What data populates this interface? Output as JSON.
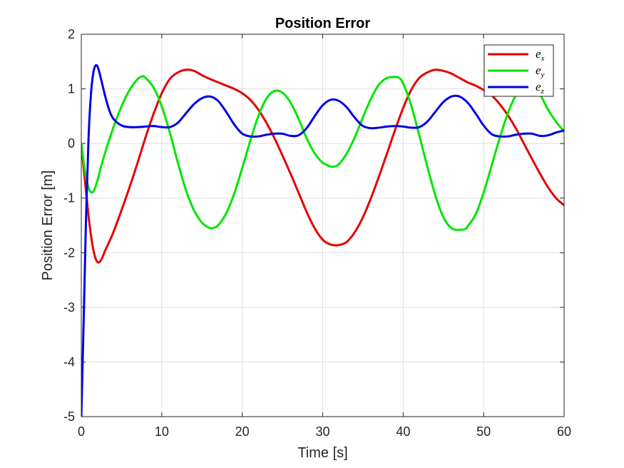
{
  "chart_data": {
    "type": "line",
    "title": "Position Error",
    "xlabel": "Time [s]",
    "ylabel": "Position Error [m]",
    "xlim": [
      0,
      60
    ],
    "ylim": [
      -5,
      2
    ],
    "xticks": [
      "0",
      "10",
      "20",
      "30",
      "40",
      "50",
      "60"
    ],
    "yticks": [
      "-5",
      "-4",
      "-3",
      "-2",
      "-1",
      "0",
      "1",
      "2"
    ],
    "grid": true,
    "legend_position": "top-right",
    "series": [
      {
        "name": "e_x",
        "legend_base": "e",
        "legend_sub": "x",
        "color": "#e60000",
        "x": [
          0,
          0.5,
          1,
          1.5,
          2,
          2.5,
          3,
          4,
          5,
          6,
          7,
          8,
          9,
          10,
          11,
          12,
          13,
          14,
          15,
          16,
          17,
          18,
          19,
          20,
          21,
          22,
          23,
          24,
          25,
          26,
          27,
          28,
          29,
          30,
          31,
          32,
          33,
          34,
          35,
          36,
          37,
          38,
          39,
          40,
          41,
          42,
          43,
          44,
          45,
          46,
          47,
          48,
          49,
          50,
          51,
          52,
          53,
          54,
          55,
          56,
          57,
          58,
          59,
          60
        ],
        "y": [
          0,
          -0.75,
          -1.45,
          -1.95,
          -2.17,
          -2.12,
          -1.95,
          -1.62,
          -1.22,
          -0.8,
          -0.35,
          0.12,
          0.55,
          0.92,
          1.18,
          1.3,
          1.35,
          1.33,
          1.25,
          1.18,
          1.12,
          1.06,
          1.0,
          0.92,
          0.8,
          0.62,
          0.38,
          0.1,
          -0.22,
          -0.55,
          -0.9,
          -1.25,
          -1.55,
          -1.76,
          -1.85,
          -1.86,
          -1.8,
          -1.62,
          -1.35,
          -1.0,
          -0.6,
          -0.18,
          0.25,
          0.65,
          0.98,
          1.2,
          1.3,
          1.35,
          1.33,
          1.28,
          1.2,
          1.12,
          1.06,
          0.98,
          0.88,
          0.72,
          0.52,
          0.28,
          0.0,
          -0.28,
          -0.55,
          -0.8,
          -1.0,
          -1.13
        ]
      },
      {
        "name": "e_y",
        "legend_base": "e",
        "legend_sub": "y",
        "color": "#00e600",
        "x": [
          0,
          0.5,
          1,
          1.5,
          2,
          2.5,
          3,
          4,
          5,
          6,
          7,
          7.6,
          8,
          9,
          10,
          11,
          12,
          13,
          14,
          15,
          16,
          16.5,
          17,
          18,
          19,
          20,
          21,
          22,
          23,
          24,
          25,
          26,
          27,
          28,
          29,
          30,
          31,
          31.5,
          32,
          33,
          34,
          35,
          36,
          37,
          38,
          39,
          39.5,
          40,
          41,
          42,
          43,
          44,
          45,
          46,
          47,
          47.8,
          48,
          49,
          50,
          51,
          52,
          53,
          54,
          55,
          56,
          57,
          58,
          59,
          60
        ],
        "y": [
          0,
          -0.55,
          -0.85,
          -0.88,
          -0.68,
          -0.4,
          -0.15,
          0.3,
          0.68,
          0.98,
          1.18,
          1.23,
          1.2,
          1.02,
          0.68,
          0.2,
          -0.35,
          -0.85,
          -1.22,
          -1.45,
          -1.55,
          -1.54,
          -1.5,
          -1.28,
          -0.92,
          -0.45,
          0.05,
          0.5,
          0.82,
          0.96,
          0.93,
          0.75,
          0.45,
          0.1,
          -0.18,
          -0.35,
          -0.42,
          -0.42,
          -0.38,
          -0.18,
          0.12,
          0.48,
          0.82,
          1.08,
          1.2,
          1.22,
          1.2,
          1.1,
          0.7,
          0.15,
          -0.42,
          -0.95,
          -1.35,
          -1.55,
          -1.58,
          -1.56,
          -1.52,
          -1.3,
          -0.9,
          -0.4,
          0.1,
          0.55,
          0.88,
          1.05,
          1.05,
          0.9,
          0.62,
          0.4,
          0.22
        ]
      },
      {
        "name": "e_z",
        "legend_base": "e",
        "legend_sub": "z",
        "color": "#0000e6",
        "x": [
          0,
          0.3,
          0.6,
          0.9,
          1.2,
          1.5,
          1.8,
          2.1,
          2.5,
          3,
          3.5,
          4,
          5,
          6,
          7,
          8,
          9,
          10,
          11,
          12,
          13,
          14,
          15,
          16,
          17,
          18,
          19,
          20,
          21,
          22,
          23,
          24,
          25,
          26,
          27,
          28,
          29,
          30,
          31,
          32,
          33,
          34,
          35,
          36,
          37,
          38,
          39,
          40,
          41,
          42,
          43,
          44,
          45,
          46,
          47,
          48,
          49,
          50,
          51,
          52,
          53,
          54,
          55,
          56,
          57,
          58,
          59,
          60
        ],
        "y": [
          -5.0,
          -3.2,
          -1.3,
          0.1,
          0.9,
          1.3,
          1.43,
          1.38,
          1.15,
          0.85,
          0.6,
          0.45,
          0.33,
          0.3,
          0.3,
          0.31,
          0.32,
          0.3,
          0.3,
          0.38,
          0.55,
          0.72,
          0.83,
          0.86,
          0.78,
          0.58,
          0.35,
          0.18,
          0.13,
          0.13,
          0.16,
          0.18,
          0.18,
          0.14,
          0.15,
          0.28,
          0.5,
          0.7,
          0.8,
          0.78,
          0.66,
          0.47,
          0.32,
          0.28,
          0.29,
          0.31,
          0.32,
          0.31,
          0.29,
          0.3,
          0.4,
          0.58,
          0.76,
          0.86,
          0.86,
          0.75,
          0.55,
          0.33,
          0.17,
          0.13,
          0.13,
          0.16,
          0.18,
          0.18,
          0.14,
          0.15,
          0.2,
          0.24
        ]
      }
    ]
  }
}
